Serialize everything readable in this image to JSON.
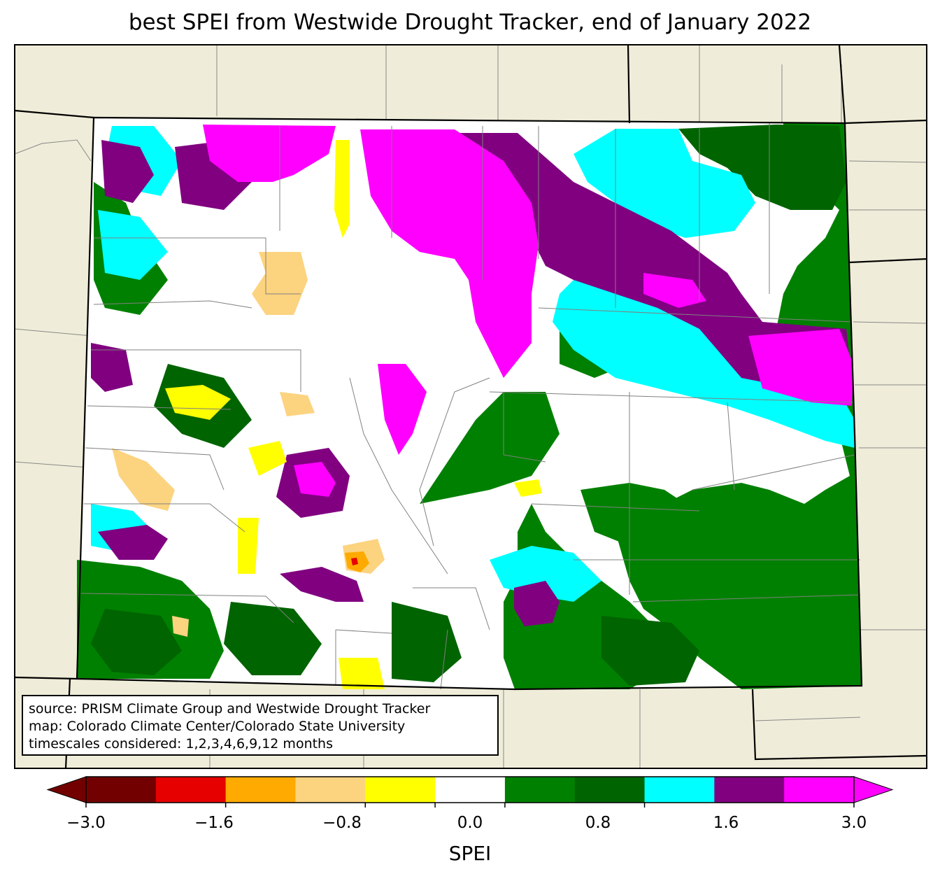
{
  "title": "best SPEI from Westwide Drought Tracker, end of January 2022",
  "source_lines": [
    "source: PRISM Climate Group and Westwide Drought Tracker",
    "map: Colorado Climate Center/Colorado State University",
    "timescales considered: 1,2,3,4,6,9,12 months"
  ],
  "colorbar": {
    "label": "SPEI",
    "ticks": [
      "−3.0",
      "−1.6",
      "−0.8",
      "0.0",
      "0.8",
      "1.6",
      "3.0"
    ],
    "bins": [
      {
        "from": -3.0,
        "to": -2.3,
        "color": "#730000"
      },
      {
        "from": -2.3,
        "to": -1.6,
        "color": "#e60000"
      },
      {
        "from": -1.6,
        "to": -1.2,
        "color": "#ffaa00"
      },
      {
        "from": -1.2,
        "to": -0.8,
        "color": "#fcd37f"
      },
      {
        "from": -0.8,
        "to": -0.4,
        "color": "#ffff00"
      },
      {
        "from": -0.4,
        "to": 0.4,
        "color": "#ffffff"
      },
      {
        "from": 0.4,
        "to": 0.8,
        "color": "#008000"
      },
      {
        "from": 0.8,
        "to": 1.2,
        "color": "#006400"
      },
      {
        "from": 1.2,
        "to": 1.6,
        "color": "#00ffff"
      },
      {
        "from": 1.6,
        "to": 2.3,
        "color": "#800080"
      },
      {
        "from": 2.3,
        "to": 3.0,
        "color": "#ff00ff"
      }
    ],
    "under_color": "#730000",
    "over_color": "#ff00ff"
  },
  "map": {
    "background_color": "#efedd9",
    "region": "Colorado"
  }
}
